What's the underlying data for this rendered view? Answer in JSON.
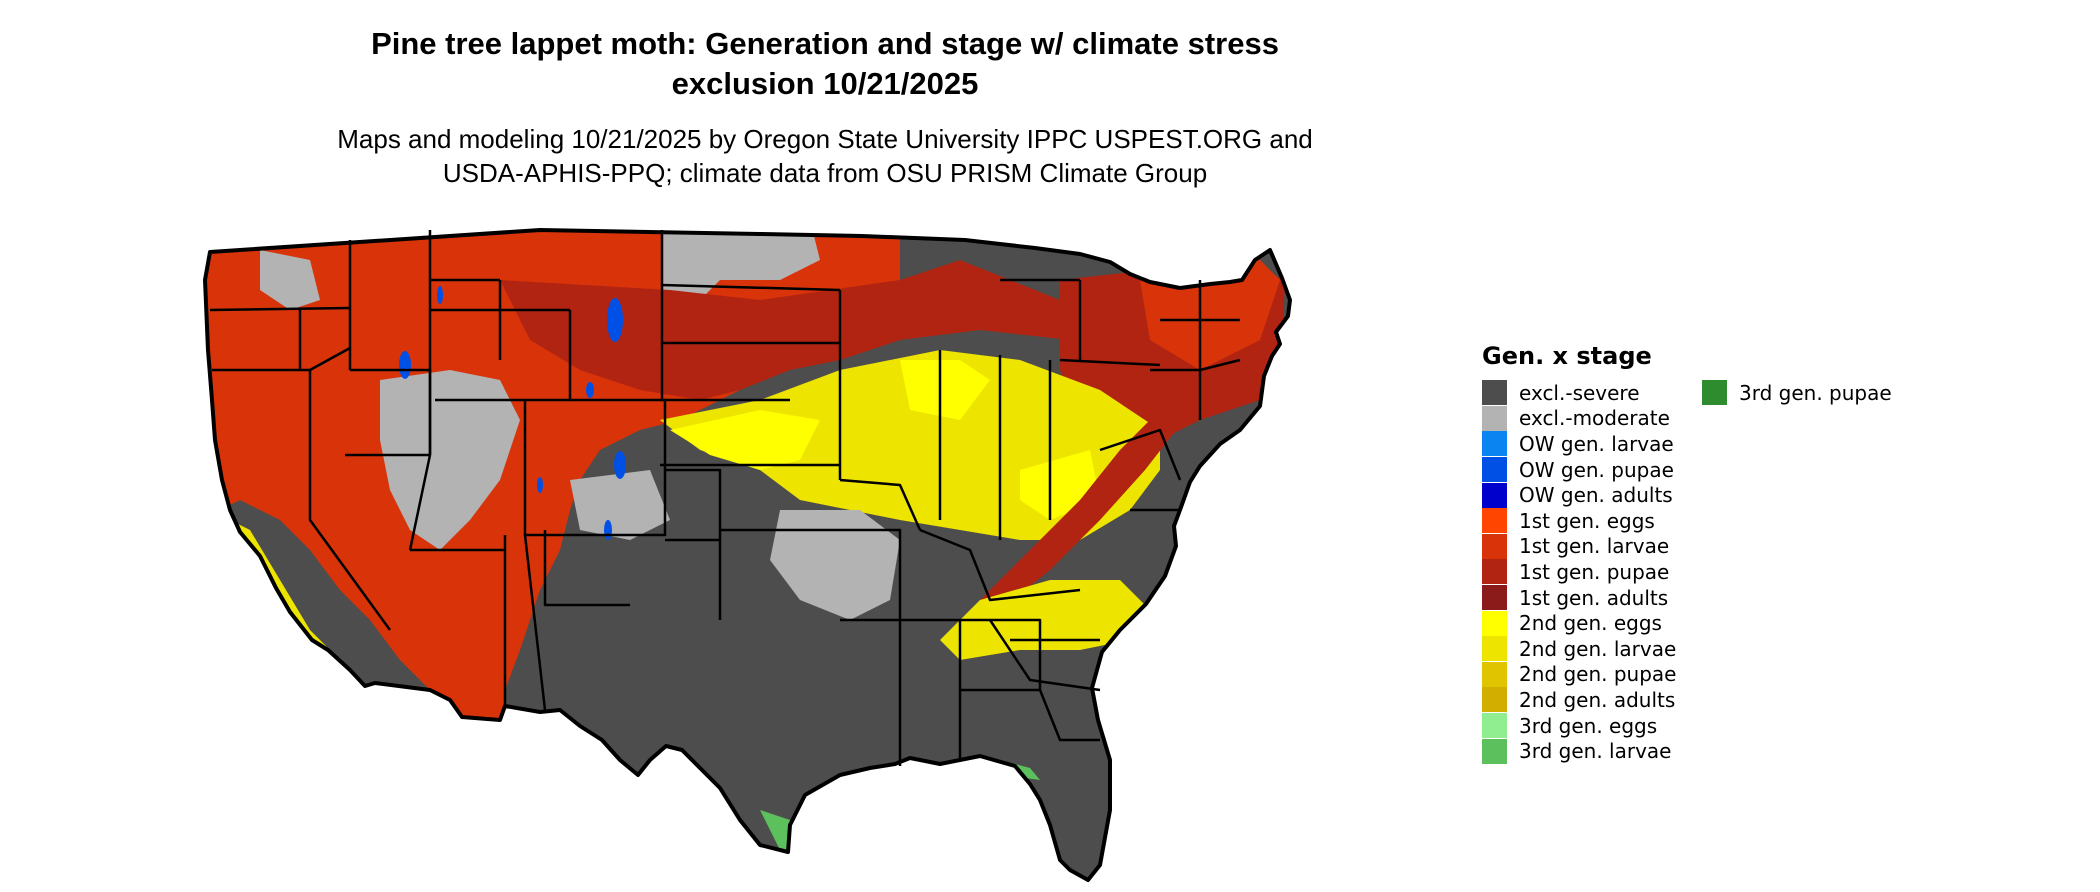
{
  "title_line1": "Pine tree lappet moth: Generation and stage w/ climate stress",
  "title_line2": "exclusion 10/21/2025",
  "subtitle_line1": "Maps and modeling 10/21/2025 by Oregon State University IPPC USPEST.ORG and",
  "subtitle_line2": "USDA-APHIS-PPQ; climate data from OSU PRISM Climate Group",
  "legend": {
    "title": "Gen. x stage",
    "items": [
      {
        "label": "excl.-severe",
        "color": "#4d4d4d"
      },
      {
        "label": "excl.-moderate",
        "color": "#b3b3b3"
      },
      {
        "label": "OW gen. larvae",
        "color": "#0a84f0"
      },
      {
        "label": "OW gen. pupae",
        "color": "#0050e6"
      },
      {
        "label": "OW gen. adults",
        "color": "#0000cd"
      },
      {
        "label": "1st gen. eggs",
        "color": "#ff4500"
      },
      {
        "label": "1st gen. larvae",
        "color": "#d9330a"
      },
      {
        "label": "1st gen. pupae",
        "color": "#b22412"
      },
      {
        "label": "1st gen. adults",
        "color": "#8b1a1a"
      },
      {
        "label": "2nd gen. eggs",
        "color": "#ffff00"
      },
      {
        "label": "2nd gen. larvae",
        "color": "#ede400"
      },
      {
        "label": "2nd gen. pupae",
        "color": "#e1c400"
      },
      {
        "label": "2nd gen. adults",
        "color": "#d2ae00"
      },
      {
        "label": "3rd gen. eggs",
        "color": "#90ee90"
      },
      {
        "label": "3rd gen. larvae",
        "color": "#5cc05c"
      },
      {
        "label": "3rd gen. pupae",
        "color": "#2e8b2e"
      }
    ]
  },
  "map_regions": [
    {
      "region": "northwest-mountain-west",
      "legend_class": "1st gen. larvae"
    },
    {
      "region": "northern-plains-great-lakes",
      "legend_class": "1st gen. pupae"
    },
    {
      "region": "northeast",
      "legend_class": "1st gen. pupae"
    },
    {
      "region": "central-plains-ohio-valley",
      "legend_class": "2nd gen. larvae"
    },
    {
      "region": "south-southwest",
      "legend_class": "excl.-severe"
    },
    {
      "region": "transition-zones",
      "legend_class": "excl.-moderate"
    },
    {
      "region": "rocky-mountain-highlands",
      "legend_class": "OW gen. pupae"
    },
    {
      "region": "gulf-atlantic-coast-fringe",
      "legend_class": "3rd gen. larvae"
    }
  ]
}
